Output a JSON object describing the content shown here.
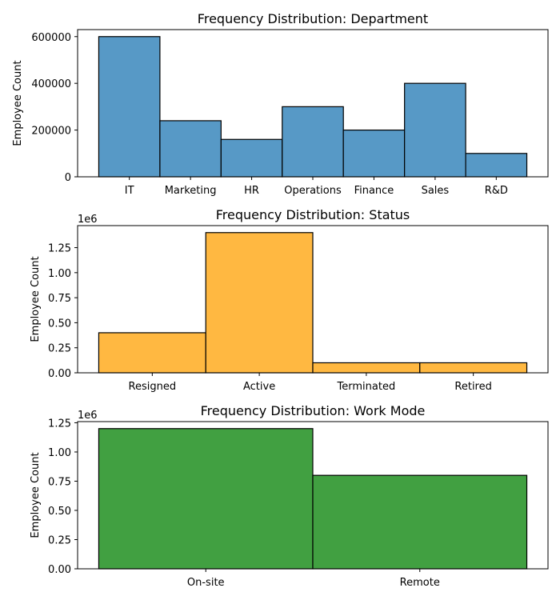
{
  "chart_data": [
    {
      "type": "bar",
      "title": "Frequency Distribution: Department",
      "xlabel": "",
      "ylabel": "Employee Count",
      "categories": [
        "IT",
        "Marketing",
        "HR",
        "Operations",
        "Finance",
        "Sales",
        "R&D"
      ],
      "values": [
        600000,
        240000,
        160000,
        300000,
        200000,
        400000,
        100000
      ],
      "ylim": [
        0,
        630000
      ],
      "yticks": [
        0,
        200000,
        400000,
        600000
      ],
      "ytick_labels": [
        "0",
        "200000",
        "400000",
        "600000"
      ],
      "y_offset_label": "",
      "color": "#5799c6",
      "grid": false,
      "legend": "none"
    },
    {
      "type": "bar",
      "title": "Frequency Distribution: Status",
      "xlabel": "",
      "ylabel": "Employee Count",
      "categories": [
        "Resigned",
        "Active",
        "Terminated",
        "Retired"
      ],
      "values": [
        400000,
        1400000,
        100000,
        100000
      ],
      "ylim": [
        0,
        1470000
      ],
      "yticks": [
        0,
        250000,
        500000,
        750000,
        1000000,
        1250000
      ],
      "ytick_labels": [
        "0.00",
        "0.25",
        "0.50",
        "0.75",
        "1.00",
        "1.25"
      ],
      "y_offset_label": "1e6",
      "color": "#ffb841",
      "grid": false,
      "legend": "none"
    },
    {
      "type": "bar",
      "title": "Frequency Distribution: Work Mode",
      "xlabel": "",
      "ylabel": "Employee Count",
      "categories": [
        "On-site",
        "Remote"
      ],
      "values": [
        1200000,
        800000
      ],
      "ylim": [
        0,
        1260000
      ],
      "yticks": [
        0,
        250000,
        500000,
        750000,
        1000000,
        1250000
      ],
      "ytick_labels": [
        "0.00",
        "0.25",
        "0.50",
        "0.75",
        "1.00",
        "1.25"
      ],
      "y_offset_label": "1e6",
      "color": "#41a041",
      "grid": false,
      "legend": "none"
    }
  ]
}
